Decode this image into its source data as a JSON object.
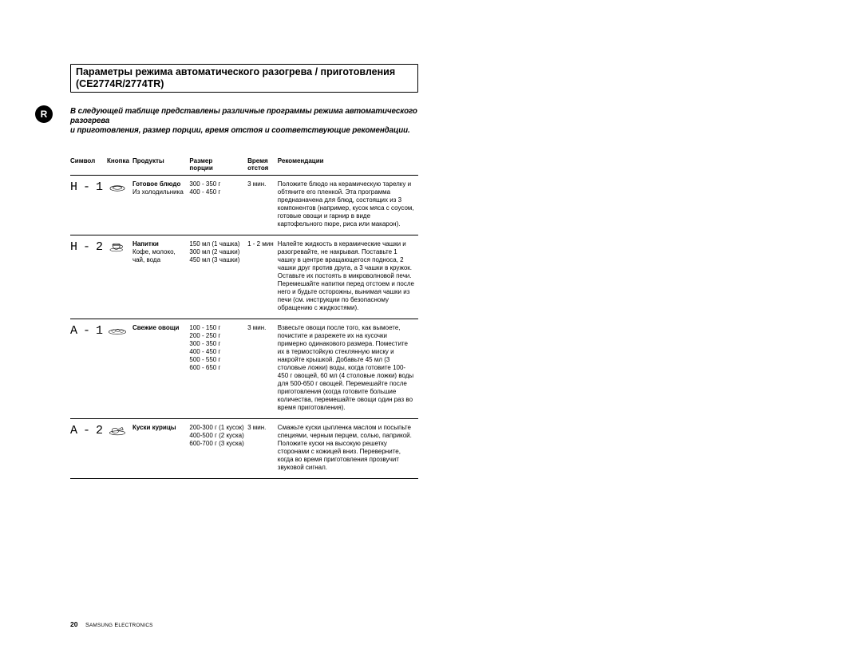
{
  "badge": "R",
  "title": "Параметры режима автоматического разогрева / приготовления (CE2774R/2774TR)",
  "intro_l1": "В следующей таблице представлены различные программы режима автоматического разогрева",
  "intro_l2": "и приготовления, размер порции, время отстоя и соответствующие рекомендации.",
  "headers": {
    "symbol": "Символ",
    "button": "Кнопка",
    "products": "Продукты",
    "size_l1": "Размер",
    "size_l2": "порции",
    "time_l1": "Время",
    "time_l2": "отстоя",
    "rec": "Рекомендации"
  },
  "rows": [
    {
      "symbol": "H - 1",
      "icon": "plate",
      "product_title": "Готовое блюдо",
      "product_sub": "Из холодильника",
      "size": "300 - 350 г\n400 - 450 г",
      "time": "3 мин.",
      "rec": "Положите блюдо на керамическую тарелку и обтяните его пленкой. Эта программа предназначена для блюд, состоящих из 3 компонентов (например, кусок мяса с соусом, готовые овощи и гарнир в виде картофельного пюре, риса или макарон)."
    },
    {
      "symbol": "H - 2",
      "icon": "cup",
      "product_title": "Напитки",
      "product_sub": "Кофе, молоко, чай, вода",
      "size": "150 мл (1 чашка)\n300 мл (2 чашки)\n450 мл (3 чашки)",
      "time": "1 - 2 мин",
      "rec": "Налейте жидкость в керамические чашки и разогревайте, не накрывая. Поставьте 1 чашку в центре вращающегося подноса, 2 чашки друг против друга, а 3 чашки в кружок. Оставьте их постоять в микроволновой печи. Перемешайте напитки перед отстоем и после него и будьте осторожны, вынимая чашки из печи (см. инструкции по безопасному обращению с жидкостями)."
    },
    {
      "symbol": "A - 1",
      "icon": "veg",
      "product_title": "Свежие овощи",
      "product_sub": "",
      "size": "100 - 150 г\n200 - 250 г\n300 - 350 г\n400 - 450 г\n500 - 550 г\n600 - 650 г",
      "time": "3 мин.",
      "rec": "Взвесьте овощи после того, как вымоете, почистите и разрежете их на кусочки примерно одинакового размера. Поместите их в термостойкую стеклянную миску и накройте крышкой. Добавьте 45 мл (3 столовые ложки) воды, когда готовите 100-450 г овощей, 60 мл (4 столовые ложки) воды для 500-650 г овощей. Перемешайте после приготовления (когда готовите большие количества, перемешайте овощи один раз во время приготовления)."
    },
    {
      "symbol": "A - 2",
      "icon": "chicken",
      "product_title": "Куски курицы",
      "product_sub": "",
      "size": "200-300 г (1 кусок)\n400-500 г (2 куска)\n600-700 г (3 куска)",
      "time": "3 мин.",
      "rec": "Смажьте куски цыпленка маслом и посыпьте специями, черным перцем, солью, паприкой. Положите куски на высокую решетку сторонами с кожицей вниз. Переверните, когда во время приготовления прозвучит звуковой сигнал."
    }
  ],
  "footer": {
    "page": "20",
    "brand": "SAMSUNG ELECTRONICS"
  },
  "colors": {
    "text": "#000000",
    "bg": "#ffffff"
  }
}
